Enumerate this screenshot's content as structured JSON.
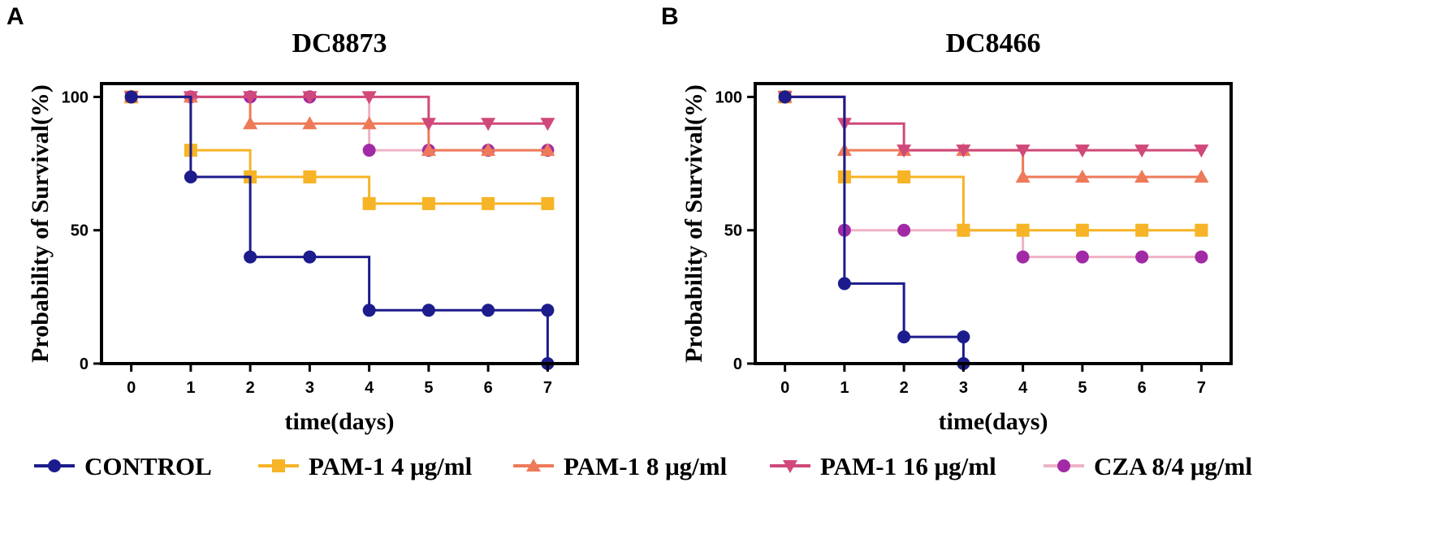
{
  "legend": {
    "entries": [
      {
        "label": "CONTROL",
        "color": "#1c1c8c",
        "marker": "circle"
      },
      {
        "label": "PAM-1 4 μg/ml",
        "color": "#f6b426",
        "marker": "square"
      },
      {
        "label": "PAM-1 8 μg/ml",
        "color": "#ee7a59",
        "marker": "triangle-up"
      },
      {
        "label": "PAM-1 16 μg/ml",
        "color": "#d0497a",
        "marker": "triangle-down"
      },
      {
        "label": "CZA  8/4 μg/ml",
        "color": "#a22aa6",
        "line_color": "#efb3c6",
        "marker": "circle"
      }
    ]
  },
  "chart_data": [
    {
      "panel": "A",
      "type": "line",
      "step": true,
      "title": "DC8873",
      "xlabel": "time(days)",
      "ylabel": "Probability of Survival(%)",
      "xlim": [
        -0.5,
        7.5
      ],
      "ylim": [
        0,
        105
      ],
      "xticks": [
        "0",
        "1",
        "2",
        "3",
        "4",
        "5",
        "6",
        "7"
      ],
      "yticks": [
        "0",
        "50",
        "100"
      ],
      "series": [
        {
          "name": "CONTROL",
          "x": [
            0,
            1,
            2,
            3,
            4,
            5,
            6,
            7,
            7
          ],
          "values": [
            100,
            70,
            40,
            40,
            20,
            20,
            20,
            20,
            0
          ]
        },
        {
          "name": "PAM-1 4 μg/ml",
          "x": [
            0,
            1,
            2,
            3,
            4,
            5,
            6,
            7
          ],
          "values": [
            100,
            80,
            70,
            70,
            60,
            60,
            60,
            60
          ]
        },
        {
          "name": "PAM-1 8 μg/ml",
          "x": [
            0,
            1,
            2,
            3,
            4,
            5,
            6,
            7
          ],
          "values": [
            100,
            100,
            90,
            90,
            90,
            80,
            80,
            80
          ]
        },
        {
          "name": "PAM-1 16 μg/ml",
          "x": [
            0,
            1,
            2,
            3,
            4,
            5,
            6,
            7
          ],
          "values": [
            100,
            100,
            100,
            100,
            100,
            90,
            90,
            90
          ]
        },
        {
          "name": "CZA  8/4 μg/ml",
          "x": [
            0,
            1,
            2,
            3,
            4,
            5,
            6,
            7
          ],
          "values": [
            100,
            100,
            100,
            100,
            80,
            80,
            80,
            80
          ]
        }
      ]
    },
    {
      "panel": "B",
      "type": "line",
      "step": true,
      "title": "DC8466",
      "xlabel": "time(days)",
      "ylabel": "Probability of Survival(%)",
      "xlim": [
        -0.5,
        7.5
      ],
      "ylim": [
        0,
        105
      ],
      "xticks": [
        "0",
        "1",
        "2",
        "3",
        "4",
        "5",
        "6",
        "7"
      ],
      "yticks": [
        "0",
        "50",
        "100"
      ],
      "series": [
        {
          "name": "CONTROL",
          "x": [
            0,
            1,
            2,
            3,
            3
          ],
          "values": [
            100,
            30,
            10,
            10,
            0
          ]
        },
        {
          "name": "PAM-1 4 μg/ml",
          "x": [
            0,
            1,
            2,
            3,
            4,
            5,
            6,
            7
          ],
          "values": [
            100,
            70,
            70,
            50,
            50,
            50,
            50,
            50
          ]
        },
        {
          "name": "PAM-1 8 μg/ml",
          "x": [
            0,
            1,
            2,
            3,
            4,
            5,
            6,
            7
          ],
          "values": [
            100,
            80,
            80,
            80,
            70,
            70,
            70,
            70
          ]
        },
        {
          "name": "PAM-1 16 μg/ml",
          "x": [
            0,
            1,
            2,
            3,
            4,
            5,
            6,
            7
          ],
          "values": [
            100,
            90,
            80,
            80,
            80,
            80,
            80,
            80
          ]
        },
        {
          "name": "CZA  8/4 μg/ml",
          "x": [
            0,
            1,
            2,
            3,
            4,
            5,
            6,
            7
          ],
          "values": [
            100,
            50,
            50,
            50,
            40,
            40,
            40,
            40
          ]
        }
      ]
    }
  ]
}
